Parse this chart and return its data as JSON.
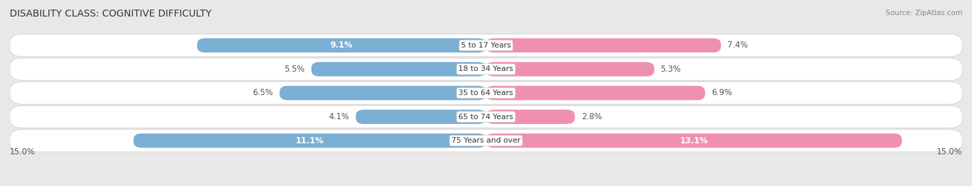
{
  "title": "DISABILITY CLASS: COGNITIVE DIFFICULTY",
  "source": "Source: ZipAtlas.com",
  "categories": [
    "5 to 17 Years",
    "18 to 34 Years",
    "35 to 64 Years",
    "65 to 74 Years",
    "75 Years and over"
  ],
  "male_values": [
    9.1,
    5.5,
    6.5,
    4.1,
    11.1
  ],
  "female_values": [
    7.4,
    5.3,
    6.9,
    2.8,
    13.1
  ],
  "male_color": "#7bafd4",
  "female_color": "#f090b0",
  "max_val": 15.0,
  "bg_color": "#e8e8e8",
  "row_bg": "#f5f5f5",
  "title_fontsize": 10,
  "label_fontsize": 8.5,
  "axis_label_fontsize": 8.5,
  "legend_fontsize": 9
}
